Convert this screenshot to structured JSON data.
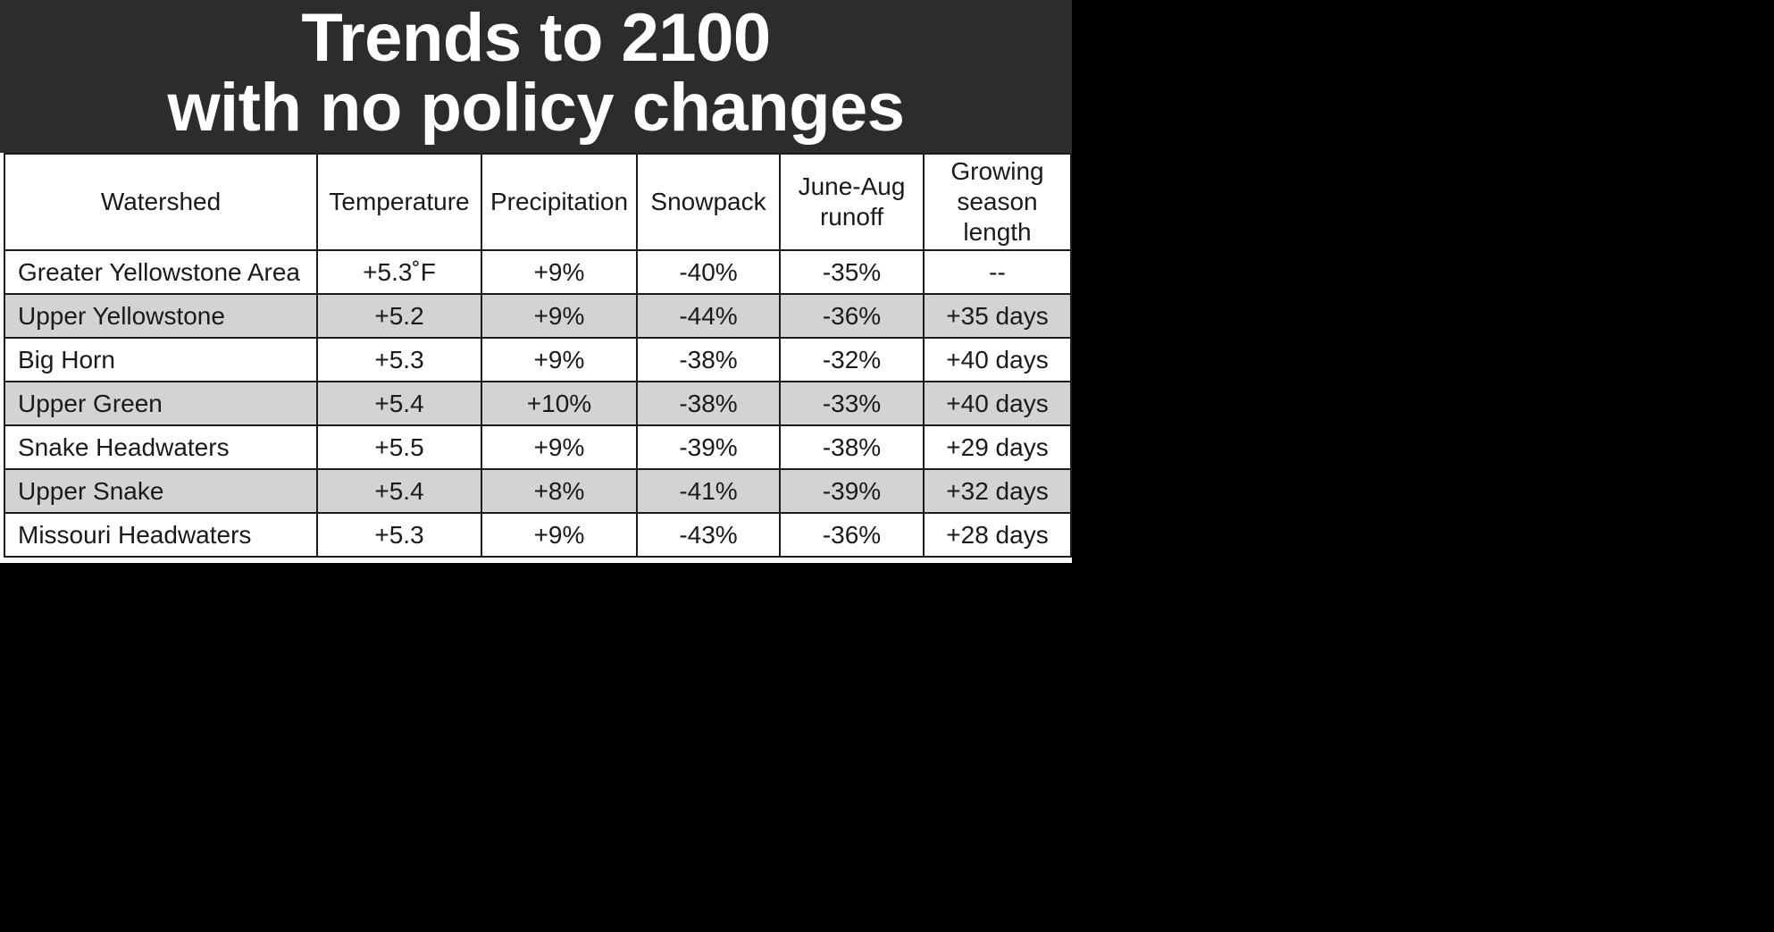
{
  "title": {
    "line1": "Trends to 2100",
    "line2": "with no policy changes"
  },
  "colors": {
    "title_band": "#2b2c2b",
    "title_text": "#ffffff",
    "row_shade": "#d3d3d3",
    "page_background": "#000000"
  },
  "chart_data": {
    "type": "table",
    "title": "Trends to 2100 with no policy changes",
    "columns": [
      "Watershed",
      "Temperature",
      "Precipitation",
      "Snowpack",
      "June-Aug runoff",
      "Growing season length"
    ],
    "rows": [
      [
        "Greater Yellowstone Area",
        "+5.3˚F",
        "+9%",
        "-40%",
        "-35%",
        "--"
      ],
      [
        "Upper Yellowstone",
        "+5.2",
        "+9%",
        "-44%",
        "-36%",
        "+35 days"
      ],
      [
        "Big Horn",
        "+5.3",
        "+9%",
        "-38%",
        "-32%",
        "+40 days"
      ],
      [
        "Upper Green",
        "+5.4",
        "+10%",
        "-38%",
        "-33%",
        "+40 days"
      ],
      [
        "Snake Headwaters",
        "+5.5",
        "+9%",
        "-39%",
        "-38%",
        "+29 days"
      ],
      [
        "Upper Snake",
        "+5.4",
        "+8%",
        "-41%",
        "-39%",
        "+32 days"
      ],
      [
        "Missouri Headwaters",
        "+5.3",
        "+9%",
        "-43%",
        "-36%",
        "+28 days"
      ]
    ],
    "shaded_rows": [
      1,
      3,
      5
    ]
  }
}
